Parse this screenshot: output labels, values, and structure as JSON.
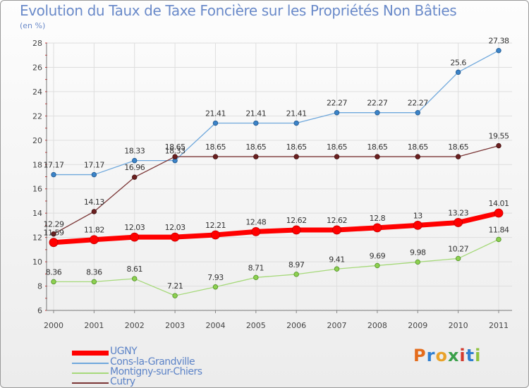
{
  "title": "Evolution du Taux de Taxe Foncière sur les Propriétés Non Bâties",
  "unit": "(en %)",
  "logo": {
    "letters": [
      "P",
      "r",
      "o",
      "x",
      "i",
      "t",
      "i"
    ],
    "colors": [
      "#e46c1c",
      "#2f7fd0",
      "#e9a22a",
      "#3aa04a",
      "#d33b2f",
      "#2f7fd0",
      "#8fc23e"
    ]
  },
  "chart_data": {
    "type": "line",
    "title": "Evolution du Taux de Taxe Foncière sur les Propriétés Non Bâties",
    "ylabel": "(en %)",
    "xlabel": "",
    "categories": [
      "2000",
      "2001",
      "2002",
      "2003",
      "2004",
      "2005",
      "2006",
      "2007",
      "2008",
      "2009",
      "2010",
      "2011"
    ],
    "ylim": [
      6,
      28
    ],
    "yticks": [
      6,
      8,
      10,
      12,
      14,
      16,
      18,
      20,
      22,
      24,
      26,
      28
    ],
    "grid": true,
    "legend_position": "bottom-left",
    "series": [
      {
        "name": "Cons-la-Grandville",
        "color": "#5b9bd5",
        "values": [
          17.17,
          17.17,
          18.33,
          18.33,
          21.41,
          21.41,
          21.41,
          22.27,
          22.27,
          22.27,
          25.6,
          27.38
        ],
        "labels": [
          "17.17",
          "17.17",
          "18.33",
          "18.33",
          "21.41",
          "21.41",
          "21.41",
          "22.27",
          "22.27",
          "22.27",
          "25.6",
          "27.38"
        ]
      },
      {
        "name": "Cutry",
        "color": "#6b2a2a",
        "values": [
          12.29,
          14.13,
          16.96,
          18.65,
          18.65,
          18.65,
          18.65,
          18.65,
          18.65,
          18.65,
          18.65,
          19.55
        ],
        "labels": [
          "12.29",
          "14.13",
          "16.96",
          "18.65",
          "18.65",
          "18.65",
          "18.65",
          "18.65",
          "18.65",
          "18.65",
          "18.65",
          "19.55"
        ]
      },
      {
        "name": "Montigny-sur-Chiers",
        "color": "#9fd66a",
        "values": [
          8.36,
          8.36,
          8.61,
          7.21,
          7.93,
          8.71,
          8.97,
          9.41,
          9.69,
          9.98,
          10.27,
          11.84
        ],
        "labels": [
          "8.36",
          "8.36",
          "8.61",
          "7.21",
          "7.93",
          "8.71",
          "8.97",
          "9.41",
          "9.69",
          "9.98",
          "10.27",
          "11.84"
        ]
      },
      {
        "name": "UGNY",
        "color": "#ff0000",
        "values": [
          11.59,
          11.82,
          12.03,
          12.03,
          12.21,
          12.48,
          12.62,
          12.62,
          12.8,
          13.0,
          13.23,
          14.01
        ],
        "labels": [
          "11.59",
          "11.82",
          "12.03",
          "12.03",
          "12.21",
          "12.48",
          "12.62",
          "12.62",
          "12.8",
          "13",
          "13.23",
          "14.01"
        ]
      }
    ],
    "legend": [
      "UGNY",
      "Cons-la-Grandville",
      "Montigny-sur-Chiers",
      "Cutry"
    ]
  }
}
